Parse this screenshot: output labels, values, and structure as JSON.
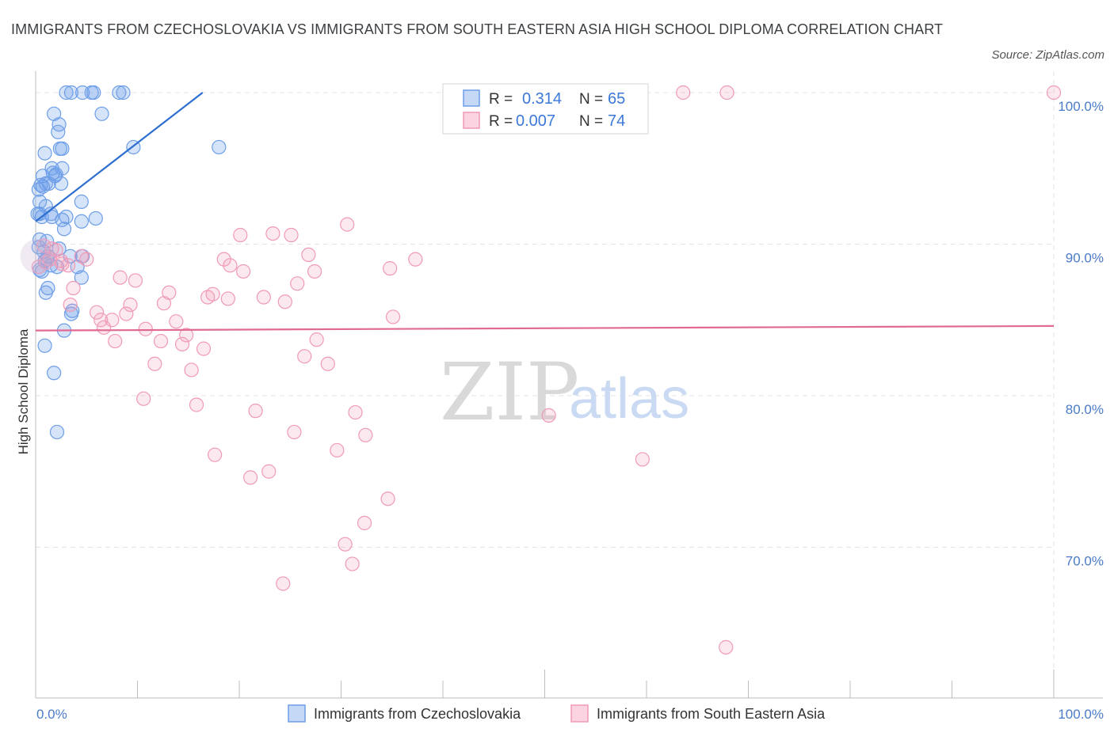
{
  "title": "IMMIGRANTS FROM CZECHOSLOVAKIA VS IMMIGRANTS FROM SOUTH EASTERN ASIA HIGH SCHOOL DIPLOMA CORRELATION CHART",
  "source": "Source: ZipAtlas.com",
  "watermark": {
    "zip": "ZIP",
    "atlas": "atlas"
  },
  "legend_box": {
    "rows": [
      {
        "r_label": "R =",
        "r_value": "0.314",
        "n_label": "N =",
        "n_value": "65"
      },
      {
        "r_label": "R =",
        "r_value": "0.007",
        "n_label": "N =",
        "n_value": "74"
      }
    ]
  },
  "chart_data": {
    "type": "scatter",
    "xlabel": "",
    "ylabel": "High School Diploma",
    "x_tick_labels": [
      "0.0%",
      "100.0%"
    ],
    "y_tick_labels": [
      "70.0%",
      "80.0%",
      "90.0%",
      "100.0%"
    ],
    "xlim": [
      0,
      100
    ],
    "ylim": [
      60,
      101
    ],
    "grid": true,
    "legend_position": "bottom",
    "colors": {
      "blue": "#6d9ee8",
      "blue_line": "#2f6fd0",
      "pink": "#f09ab6",
      "pink_line": "#e06a92"
    },
    "series": [
      {
        "name": "Immigrants from Czechoslovakia",
        "color": "#6d9ee8",
        "trend": {
          "x": [
            0.0,
            16.4
          ],
          "y": [
            91.5,
            100.0
          ]
        },
        "points": [
          [
            3.0,
            100.0
          ],
          [
            3.5,
            100.0
          ],
          [
            4.6,
            100.0
          ],
          [
            5.5,
            100.0
          ],
          [
            5.7,
            100.0
          ],
          [
            8.2,
            100.0
          ],
          [
            8.6,
            100.0
          ],
          [
            1.8,
            98.6
          ],
          [
            6.5,
            98.6
          ],
          [
            2.3,
            97.9
          ],
          [
            2.2,
            97.4
          ],
          [
            0.9,
            96.0
          ],
          [
            2.4,
            96.3
          ],
          [
            2.6,
            96.3
          ],
          [
            9.6,
            96.4
          ],
          [
            18.0,
            96.4
          ],
          [
            1.6,
            95.0
          ],
          [
            2.6,
            95.0
          ],
          [
            0.7,
            94.5
          ],
          [
            1.7,
            94.7
          ],
          [
            1.9,
            94.5
          ],
          [
            2.0,
            94.6
          ],
          [
            0.5,
            93.9
          ],
          [
            1.0,
            94.0
          ],
          [
            1.3,
            94.0
          ],
          [
            2.5,
            94.0
          ],
          [
            0.3,
            93.6
          ],
          [
            0.7,
            93.8
          ],
          [
            0.4,
            92.8
          ],
          [
            1.0,
            92.5
          ],
          [
            0.2,
            92.0
          ],
          [
            0.4,
            92.0
          ],
          [
            0.6,
            91.8
          ],
          [
            1.5,
            92.0
          ],
          [
            1.6,
            91.8
          ],
          [
            2.6,
            91.6
          ],
          [
            3.0,
            91.8
          ],
          [
            4.5,
            92.8
          ],
          [
            4.5,
            91.5
          ],
          [
            5.9,
            91.7
          ],
          [
            2.8,
            91.0
          ],
          [
            0.4,
            90.3
          ],
          [
            1.1,
            90.2
          ],
          [
            0.8,
            89.5
          ],
          [
            1.1,
            89.0
          ],
          [
            1.2,
            89.2
          ],
          [
            0.9,
            88.9
          ],
          [
            3.4,
            89.2
          ],
          [
            4.6,
            89.2
          ],
          [
            1.5,
            88.6
          ],
          [
            2.1,
            88.5
          ],
          [
            4.1,
            88.5
          ],
          [
            0.4,
            88.3
          ],
          [
            0.6,
            88.2
          ],
          [
            4.5,
            87.8
          ],
          [
            1.2,
            87.1
          ],
          [
            1.0,
            86.8
          ],
          [
            3.6,
            85.6
          ],
          [
            3.5,
            85.4
          ],
          [
            2.8,
            84.3
          ],
          [
            0.9,
            83.3
          ],
          [
            1.8,
            81.5
          ],
          [
            2.1,
            77.6
          ],
          [
            0.3,
            89.8
          ],
          [
            2.3,
            89.7
          ]
        ]
      },
      {
        "name": "Immigrants from South Eastern Asia",
        "color": "#f09ab6",
        "trend": {
          "x": [
            0.0,
            100.0
          ],
          "y": [
            84.3,
            84.6
          ]
        },
        "points": [
          [
            0.3,
            88.5
          ],
          [
            0.8,
            89.9
          ],
          [
            1.4,
            89.0
          ],
          [
            2.0,
            89.6
          ],
          [
            2.5,
            88.9
          ],
          [
            3.2,
            88.6
          ],
          [
            4.5,
            89.2
          ],
          [
            5.0,
            89.0
          ],
          [
            3.4,
            86.0
          ],
          [
            3.7,
            87.1
          ],
          [
            6.0,
            85.5
          ],
          [
            6.4,
            85.0
          ],
          [
            6.7,
            84.5
          ],
          [
            7.5,
            85.0
          ],
          [
            7.8,
            83.6
          ],
          [
            8.3,
            87.8
          ],
          [
            8.9,
            85.4
          ],
          [
            9.3,
            86.0
          ],
          [
            9.8,
            87.6
          ],
          [
            10.8,
            84.4
          ],
          [
            11.7,
            82.1
          ],
          [
            12.3,
            83.6
          ],
          [
            12.6,
            86.1
          ],
          [
            13.1,
            86.8
          ],
          [
            13.8,
            84.9
          ],
          [
            14.4,
            83.4
          ],
          [
            14.8,
            84.0
          ],
          [
            15.3,
            81.7
          ],
          [
            15.8,
            79.4
          ],
          [
            16.5,
            83.1
          ],
          [
            16.9,
            86.5
          ],
          [
            17.4,
            86.7
          ],
          [
            17.6,
            76.1
          ],
          [
            18.5,
            89.0
          ],
          [
            18.9,
            86.4
          ],
          [
            19.1,
            88.6
          ],
          [
            20.1,
            90.6
          ],
          [
            20.4,
            88.2
          ],
          [
            21.1,
            74.6
          ],
          [
            21.6,
            79.0
          ],
          [
            22.4,
            86.5
          ],
          [
            22.9,
            75.0
          ],
          [
            23.3,
            90.7
          ],
          [
            24.3,
            67.6
          ],
          [
            24.5,
            86.2
          ],
          [
            25.1,
            90.6
          ],
          [
            25.4,
            77.6
          ],
          [
            25.7,
            87.4
          ],
          [
            26.4,
            82.6
          ],
          [
            26.8,
            89.3
          ],
          [
            27.4,
            88.2
          ],
          [
            27.6,
            83.7
          ],
          [
            28.7,
            82.1
          ],
          [
            29.6,
            76.4
          ],
          [
            30.4,
            70.2
          ],
          [
            30.6,
            91.3
          ],
          [
            31.1,
            68.9
          ],
          [
            31.4,
            78.9
          ],
          [
            32.3,
            71.6
          ],
          [
            32.4,
            77.4
          ],
          [
            34.6,
            73.2
          ],
          [
            34.8,
            88.4
          ],
          [
            35.1,
            85.2
          ],
          [
            37.3,
            89.0
          ],
          [
            50.4,
            78.7
          ],
          [
            59.6,
            75.8
          ],
          [
            63.6,
            100.0
          ],
          [
            67.9,
            100.0
          ],
          [
            67.8,
            63.4
          ],
          [
            100.0,
            100.0
          ],
          [
            1.0,
            88.8
          ],
          [
            2.6,
            88.7
          ],
          [
            1.6,
            89.7
          ],
          [
            10.6,
            79.8
          ]
        ]
      }
    ]
  }
}
